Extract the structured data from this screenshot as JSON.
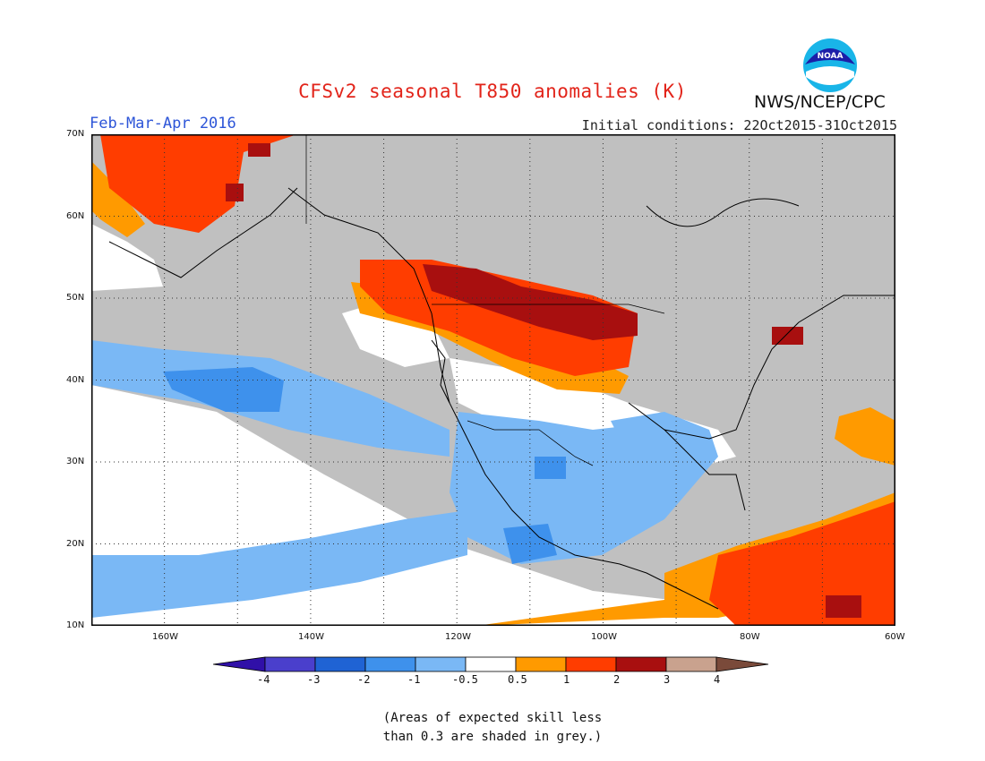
{
  "header": {
    "title": "CFSv2 seasonal T850 anomalies (K)",
    "period": "Feb-Mar-Apr 2016",
    "initial_conditions": "Initial conditions: 22Oct2015-31Oct2015",
    "organization": "NWS/NCEP/CPC",
    "logo_text": "NOAA"
  },
  "map": {
    "projection": "lat-lon",
    "lon_range": [
      -170,
      -60
    ],
    "lat_range": [
      10,
      70
    ],
    "lat_ticks": [
      "70N",
      "60N",
      "50N",
      "40N",
      "30N",
      "20N",
      "10N"
    ],
    "lon_ticks": [
      "160W",
      "140W",
      "120W",
      "100W",
      "80W",
      "60W"
    ],
    "grid": "dotted every 10 degrees"
  },
  "colorbar": {
    "labels": [
      "-4",
      "-3",
      "-2",
      "-1",
      "-0.5",
      "0.5",
      "1",
      "2",
      "3",
      "4"
    ],
    "colors": [
      "#3010a8",
      "#4a3fcc",
      "#1f63d4",
      "#3e91ec",
      "#7ab8f5",
      "#ffffff",
      "#ff9a00",
      "#ff3d00",
      "#a80f0f",
      "#c9a28e",
      "#7a4a3a"
    ]
  },
  "legend_colors": {
    "grey": "#c0c0c0",
    "white": "#ffffff",
    "light_blue": "#7ab8f5",
    "blue": "#3e91ec",
    "orange": "#ff9a00",
    "red": "#ff3d00",
    "dark_red": "#a80f0f"
  },
  "note": {
    "line1": "(Areas of expected skill less",
    "line2": "than 0.3 are shaded in grey.)"
  }
}
